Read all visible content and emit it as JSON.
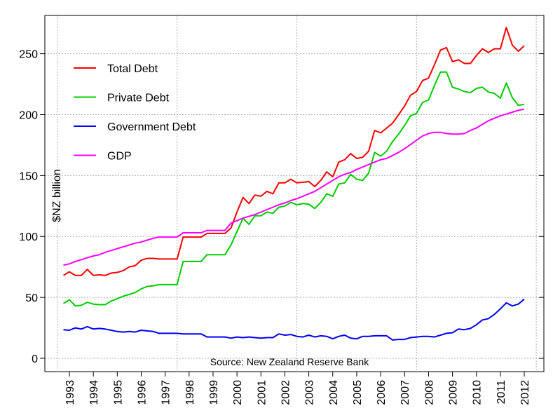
{
  "chart_data": {
    "type": "line",
    "title": "",
    "xlabel": "",
    "ylabel": "$NZ billion",
    "annotation": "Source: New Zealand Reserve Bank",
    "x_start": 1992.75,
    "x_step_years": 0.25,
    "xlim": [
      1992.5,
      2012.5
    ],
    "ylim": [
      0,
      260
    ],
    "x_ticks": [
      "1993",
      "1994",
      "1995",
      "1996",
      "1997",
      "1998",
      "1999",
      "2000",
      "2001",
      "2002",
      "2003",
      "2004",
      "2005",
      "2006",
      "2007",
      "2008",
      "2009",
      "2010",
      "2011",
      "2012"
    ],
    "y_ticks": [
      "0",
      "50",
      "100",
      "150",
      "200",
      "250"
    ],
    "grid": true,
    "legend_position": "top-left",
    "series": [
      {
        "name": "Total Debt",
        "color": "#ff0000",
        "values": [
          68,
          71,
          68,
          68,
          73,
          68,
          68.5,
          68,
          70,
          70.5,
          72,
          75,
          76,
          80.5,
          82,
          82,
          81.5,
          81.5,
          81.5,
          81.5,
          99.5,
          99.5,
          99.5,
          99.5,
          102.5,
          102.5,
          102.5,
          102.5,
          107,
          120,
          132,
          127,
          134,
          133,
          137,
          135,
          144,
          144,
          147,
          144,
          144.5,
          145,
          141,
          146,
          153,
          149,
          161,
          163,
          168,
          164,
          165,
          170,
          187,
          185,
          189,
          193,
          200,
          207,
          216,
          219,
          228,
          230,
          241,
          253,
          255,
          243.5,
          245,
          242,
          242,
          248.5,
          254,
          251,
          254,
          254,
          271.5,
          257,
          252,
          256.5
        ]
      },
      {
        "name": "Private Debt",
        "color": "#00cc00",
        "values": [
          45,
          48,
          43,
          43.5,
          46,
          44.5,
          44,
          44,
          47,
          49,
          51,
          52.5,
          54,
          57,
          59,
          59.5,
          60.5,
          60.5,
          60.5,
          60.5,
          79.5,
          79.5,
          79.5,
          79.5,
          85,
          85,
          85,
          85,
          93,
          104,
          115,
          110,
          117,
          117,
          120,
          119,
          124,
          125,
          128,
          126,
          127,
          126.5,
          123,
          128,
          135,
          133,
          143,
          144,
          151,
          147,
          146,
          152,
          169,
          166,
          170,
          178,
          184,
          191,
          199,
          201,
          210,
          212,
          224,
          235,
          235,
          222.5,
          221,
          219,
          218,
          221.5,
          222.5,
          218.5,
          217.5,
          213.5,
          226,
          214,
          207.5,
          208.5
        ]
      },
      {
        "name": "Government Debt",
        "color": "#0000ff",
        "values": [
          23.5,
          23,
          25,
          24,
          26,
          24,
          24.5,
          24,
          23,
          22,
          21.5,
          22,
          21.5,
          23,
          22.5,
          22,
          20.5,
          20.5,
          20.5,
          20.5,
          20,
          20,
          20,
          20,
          17.5,
          17.5,
          17.5,
          17.5,
          16.5,
          17.5,
          17,
          17.5,
          17,
          16.5,
          17,
          17,
          20,
          19,
          19.5,
          18,
          17.5,
          19,
          17.5,
          18.5,
          18,
          16,
          18,
          19,
          16.5,
          16,
          18,
          18,
          18.5,
          18.5,
          18.5,
          15,
          15.5,
          15.5,
          17,
          17.5,
          18,
          18,
          17.5,
          19,
          20.5,
          21,
          24,
          23.5,
          24.5,
          27.5,
          31.5,
          32.5,
          36,
          40.5,
          45.5,
          43,
          44.5,
          48.5
        ]
      },
      {
        "name": "GDP",
        "color": "#ff00ff",
        "values": [
          76.5,
          77.5,
          79.5,
          81,
          82.5,
          84,
          85,
          87,
          88.5,
          90,
          91.5,
          93,
          94.5,
          95.5,
          97,
          98.5,
          99.5,
          99.5,
          99.5,
          99.5,
          103,
          103,
          103,
          103,
          105,
          105,
          105,
          105,
          111,
          113,
          115,
          116.5,
          118,
          120,
          122,
          124,
          126,
          127.5,
          129.5,
          131,
          133,
          135,
          137,
          140,
          143,
          146,
          149,
          151,
          152.5,
          155,
          157,
          159,
          161,
          163,
          164,
          166.5,
          169,
          172,
          175.5,
          179,
          182.5,
          184.5,
          185.5,
          185.5,
          184.5,
          184,
          184,
          184.5,
          187,
          189,
          192,
          195,
          197,
          199,
          200.5,
          202,
          203.5,
          204.5
        ]
      }
    ]
  }
}
